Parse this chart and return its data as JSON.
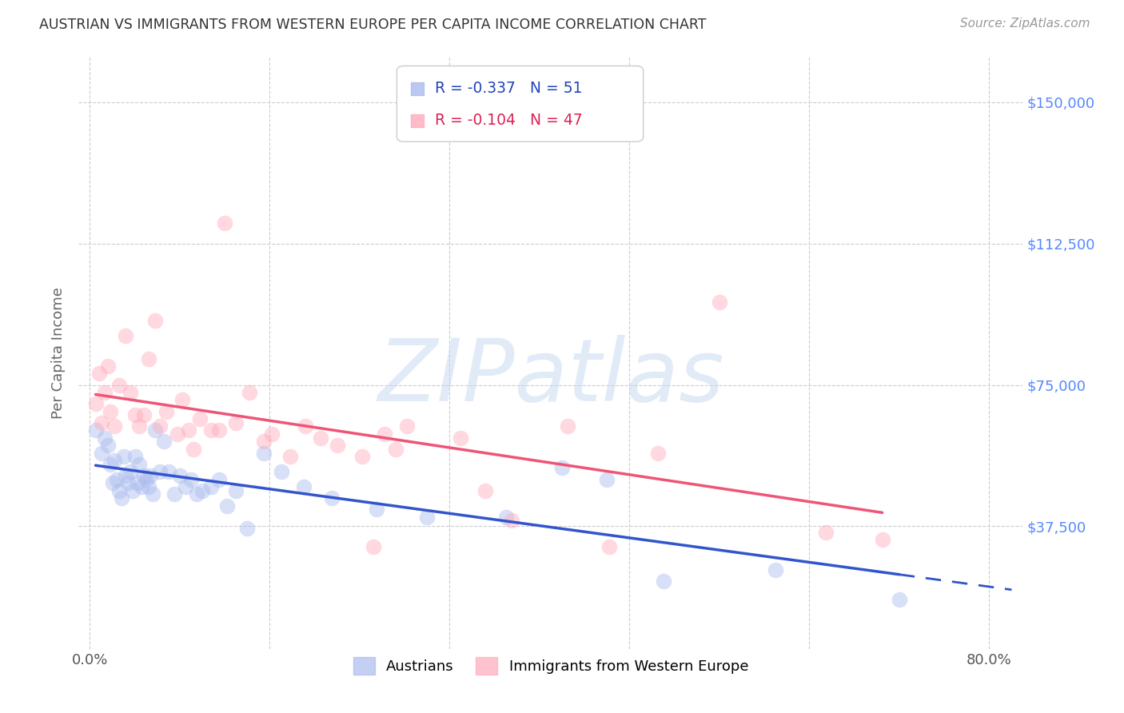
{
  "title": "AUSTRIAN VS IMMIGRANTS FROM WESTERN EUROPE PER CAPITA INCOME CORRELATION CHART",
  "source_text": "Source: ZipAtlas.com",
  "ylabel": "Per Capita Income",
  "xlim": [
    -0.01,
    0.83
  ],
  "ylim": [
    5000,
    162000
  ],
  "yticks": [
    37500,
    75000,
    112500,
    150000
  ],
  "ytick_labels": [
    "$37,500",
    "$75,000",
    "$112,500",
    "$150,000"
  ],
  "xticks": [
    0.0,
    0.16,
    0.32,
    0.48,
    0.64,
    0.8
  ],
  "xtick_labels": [
    "0.0%",
    "",
    "",
    "",
    "",
    "80.0%"
  ],
  "background_color": "#ffffff",
  "grid_color": "#cccccc",
  "title_color": "#333333",
  "watermark_text": "ZIPatlas",
  "watermark_color": "#c5d8f0",
  "legend_r1": "-0.337",
  "legend_n1": "51",
  "legend_r2": "-0.104",
  "legend_n2": "47",
  "blue_scatter_color": "#aabbee",
  "pink_scatter_color": "#ffaabb",
  "blue_line_color": "#3355cc",
  "pink_line_color": "#ee5577",
  "blue_legend_color": "#2244bb",
  "pink_legend_color": "#dd2255",
  "austrians_x": [
    0.005,
    0.01,
    0.013,
    0.016,
    0.018,
    0.02,
    0.022,
    0.024,
    0.026,
    0.028,
    0.03,
    0.032,
    0.034,
    0.036,
    0.038,
    0.04,
    0.042,
    0.044,
    0.046,
    0.048,
    0.05,
    0.052,
    0.054,
    0.056,
    0.058,
    0.062,
    0.066,
    0.07,
    0.075,
    0.08,
    0.085,
    0.09,
    0.095,
    0.1,
    0.108,
    0.115,
    0.122,
    0.13,
    0.14,
    0.155,
    0.17,
    0.19,
    0.215,
    0.255,
    0.3,
    0.37,
    0.42,
    0.46,
    0.51,
    0.61,
    0.72
  ],
  "austrians_y": [
    63000,
    57000,
    61000,
    59000,
    54000,
    49000,
    55000,
    50000,
    47000,
    45000,
    56000,
    51000,
    49000,
    52000,
    47000,
    56000,
    49000,
    54000,
    48000,
    51000,
    50000,
    48000,
    51000,
    46000,
    63000,
    52000,
    60000,
    52000,
    46000,
    51000,
    48000,
    50000,
    46000,
    47000,
    48000,
    50000,
    43000,
    47000,
    37000,
    57000,
    52000,
    48000,
    45000,
    42000,
    40000,
    40000,
    53000,
    50000,
    23000,
    26000,
    18000
  ],
  "immigrants_x": [
    0.005,
    0.008,
    0.01,
    0.013,
    0.016,
    0.018,
    0.022,
    0.026,
    0.032,
    0.036,
    0.04,
    0.044,
    0.048,
    0.052,
    0.058,
    0.062,
    0.068,
    0.078,
    0.082,
    0.088,
    0.092,
    0.098,
    0.108,
    0.115,
    0.12,
    0.13,
    0.142,
    0.155,
    0.162,
    0.178,
    0.192,
    0.205,
    0.22,
    0.242,
    0.252,
    0.262,
    0.272,
    0.282,
    0.33,
    0.352,
    0.375,
    0.425,
    0.462,
    0.505,
    0.56,
    0.655,
    0.705
  ],
  "immigrants_y": [
    70000,
    78000,
    65000,
    73000,
    80000,
    68000,
    64000,
    75000,
    88000,
    73000,
    67000,
    64000,
    67000,
    82000,
    92000,
    64000,
    68000,
    62000,
    71000,
    63000,
    58000,
    66000,
    63000,
    63000,
    118000,
    65000,
    73000,
    60000,
    62000,
    56000,
    64000,
    61000,
    59000,
    56000,
    32000,
    62000,
    58000,
    64000,
    61000,
    47000,
    39000,
    64000,
    32000,
    57000,
    97000,
    36000,
    34000
  ]
}
